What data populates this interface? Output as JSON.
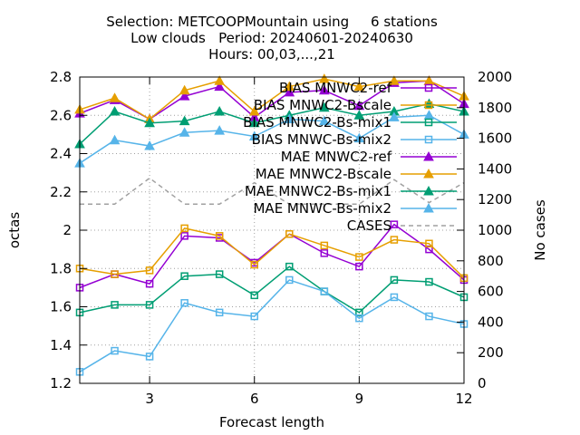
{
  "chart_data": {
    "type": "line",
    "title_lines": [
      "Selection: METCOOPMountain using     6 stations",
      "Low clouds   Period: 20240601-20240630",
      "Hours: 00,03,...,21"
    ],
    "xlabel": "Forecast length",
    "ylabel": "octas",
    "y2label": "No cases",
    "xlim": [
      1,
      12
    ],
    "ylim": [
      1.2,
      2.8
    ],
    "y2lim": [
      0,
      2000
    ],
    "xticks": [
      3,
      6,
      9,
      12
    ],
    "yticks": [
      1.2,
      1.4,
      1.6,
      1.8,
      2,
      2.2,
      2.4,
      2.6,
      2.8
    ],
    "y2ticks": [
      0,
      200,
      400,
      600,
      800,
      1000,
      1200,
      1400,
      1600,
      1800,
      2000
    ],
    "grid": true,
    "legend_position": "top-right",
    "x": [
      1,
      2,
      3,
      4,
      5,
      6,
      7,
      8,
      9,
      10,
      11,
      12
    ],
    "series": [
      {
        "name": "BIAS MNWC2-ref",
        "axis": "left",
        "marker": "square-open",
        "color": "#9400d3",
        "values": [
          1.7,
          1.77,
          1.72,
          1.97,
          1.96,
          1.83,
          1.98,
          1.88,
          1.81,
          2.03,
          1.9,
          1.74
        ]
      },
      {
        "name": "BIAS MNWC2-Bscale",
        "axis": "left",
        "marker": "square-open",
        "color": "#e69f00",
        "values": [
          1.8,
          1.77,
          1.79,
          2.01,
          1.97,
          1.82,
          1.98,
          1.92,
          1.86,
          1.95,
          1.93,
          1.75
        ]
      },
      {
        "name": "BIAS MNWC2-Bs-mix1",
        "axis": "left",
        "marker": "square-open",
        "color": "#009e73",
        "values": [
          1.57,
          1.61,
          1.61,
          1.76,
          1.77,
          1.66,
          1.81,
          1.68,
          1.57,
          1.74,
          1.73,
          1.65
        ]
      },
      {
        "name": "BIAS MNWC-Bs-mix2",
        "axis": "left",
        "marker": "square-open",
        "color": "#56b4e9",
        "values": [
          1.26,
          1.37,
          1.34,
          1.62,
          1.57,
          1.55,
          1.74,
          1.68,
          1.54,
          1.65,
          1.55,
          1.51
        ]
      },
      {
        "name": "MAE MNWC2-ref",
        "axis": "left",
        "marker": "triangle-filled",
        "color": "#9400d3",
        "values": [
          2.61,
          2.68,
          2.58,
          2.7,
          2.75,
          2.59,
          2.72,
          2.73,
          2.65,
          2.77,
          2.78,
          2.66
        ]
      },
      {
        "name": "MAE MNWC2-Bscale",
        "axis": "left",
        "marker": "triangle-filled",
        "color": "#e69f00",
        "values": [
          2.63,
          2.69,
          2.58,
          2.73,
          2.78,
          2.62,
          2.75,
          2.79,
          2.75,
          2.78,
          2.78,
          2.7
        ]
      },
      {
        "name": "MAE MNWC2-Bs-mix1",
        "axis": "left",
        "marker": "triangle-filled",
        "color": "#009e73",
        "values": [
          2.45,
          2.62,
          2.56,
          2.57,
          2.62,
          2.56,
          2.6,
          2.64,
          2.6,
          2.62,
          2.66,
          2.62
        ]
      },
      {
        "name": "MAE MNWC-Bs-mix2",
        "axis": "left",
        "marker": "triangle-filled",
        "color": "#56b4e9",
        "values": [
          2.35,
          2.47,
          2.44,
          2.51,
          2.52,
          2.49,
          2.58,
          2.57,
          2.48,
          2.59,
          2.6,
          2.5
        ]
      },
      {
        "name": "CASES",
        "axis": "right",
        "marker": "none",
        "dashed": true,
        "color": "#a0a0a0",
        "values": [
          1170,
          1170,
          1340,
          1170,
          1170,
          1310,
          1170,
          1170,
          1170,
          1330,
          1180,
          1310
        ]
      }
    ]
  }
}
